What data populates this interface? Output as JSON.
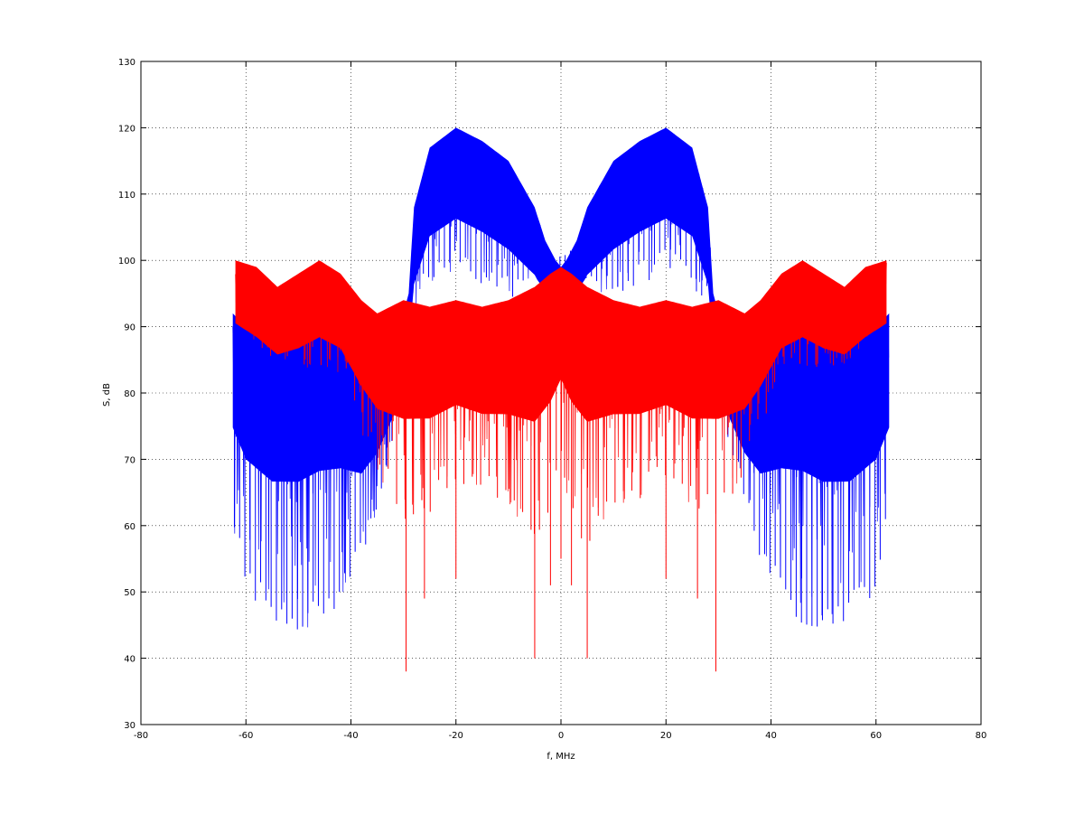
{
  "chart_data": {
    "type": "line",
    "title": "",
    "xlabel": "f, MHz",
    "ylabel": "S, dB",
    "xlim": [
      -80,
      80
    ],
    "ylim": [
      30,
      130
    ],
    "x_ticks": [
      -80,
      -60,
      -40,
      -20,
      0,
      20,
      40,
      60,
      80
    ],
    "y_ticks": [
      30,
      40,
      50,
      60,
      70,
      80,
      90,
      100,
      110,
      120,
      130
    ],
    "x_tick_labels": [
      "-80",
      "-60",
      "-40",
      "-20",
      "0",
      "20",
      "40",
      "60",
      "80"
    ],
    "y_tick_labels": [
      "30",
      "40",
      "50",
      "60",
      "70",
      "80",
      "90",
      "100",
      "110",
      "120",
      "130"
    ],
    "grid": true,
    "legend": "none",
    "series": [
      {
        "color": "#0000ff",
        "envelope_x": [
          -62.5,
          -60,
          -55,
          -50,
          -46,
          -42,
          -38,
          -35,
          -32,
          -30,
          -29,
          -28,
          -25,
          -20,
          -15,
          -10,
          -5,
          -3,
          -1,
          0,
          1,
          3,
          5,
          10,
          15,
          20,
          25,
          28,
          29,
          30,
          32,
          35,
          38,
          42,
          46,
          50,
          55,
          60,
          62.5
        ],
        "upper": [
          92,
          90,
          87,
          88,
          90,
          89,
          84,
          85,
          88,
          92,
          95,
          108,
          117,
          120,
          118,
          115,
          108,
          103,
          100,
          99,
          100,
          103,
          108,
          115,
          118,
          120,
          117,
          108,
          95,
          92,
          88,
          85,
          84,
          89,
          90,
          88,
          87,
          90,
          92
        ],
        "lower": [
          60,
          50,
          46,
          44,
          45,
          48,
          55,
          62,
          72,
          80,
          88,
          92,
          96,
          98,
          96,
          94,
          96,
          97,
          98,
          99,
          98,
          97,
          96,
          94,
          96,
          98,
          96,
          92,
          88,
          80,
          72,
          62,
          55,
          48,
          45,
          44,
          46,
          50,
          60
        ]
      },
      {
        "color": "#ff0000",
        "envelope_x": [
          -62,
          -58,
          -54,
          -50,
          -46,
          -42,
          -38,
          -35,
          -30,
          -25,
          -20,
          -15,
          -10,
          -5,
          -2,
          0,
          2,
          5,
          10,
          15,
          20,
          25,
          30,
          35,
          38,
          42,
          46,
          50,
          54,
          58,
          62
        ],
        "upper": [
          100,
          99,
          96,
          98,
          100,
          98,
          94,
          92,
          94,
          93,
          94,
          93,
          94,
          96,
          98,
          99,
          98,
          96,
          94,
          93,
          94,
          93,
          94,
          92,
          94,
          98,
          100,
          98,
          96,
          99,
          100
        ],
        "lower": [
          90,
          86,
          84,
          83,
          84,
          83,
          74,
          68,
          60,
          62,
          66,
          64,
          62,
          55,
          60,
          68,
          60,
          55,
          62,
          64,
          66,
          62,
          60,
          68,
          74,
          83,
          84,
          83,
          84,
          86,
          90
        ],
        "deep_dips": [
          [
            -29.5,
            38
          ],
          [
            -26,
            49
          ],
          [
            -20,
            52
          ],
          [
            -5,
            40
          ],
          [
            -2,
            51
          ],
          [
            0,
            55
          ],
          [
            2,
            51
          ],
          [
            5,
            40
          ],
          [
            20,
            52
          ],
          [
            26,
            49
          ],
          [
            29.5,
            38
          ]
        ]
      }
    ]
  }
}
